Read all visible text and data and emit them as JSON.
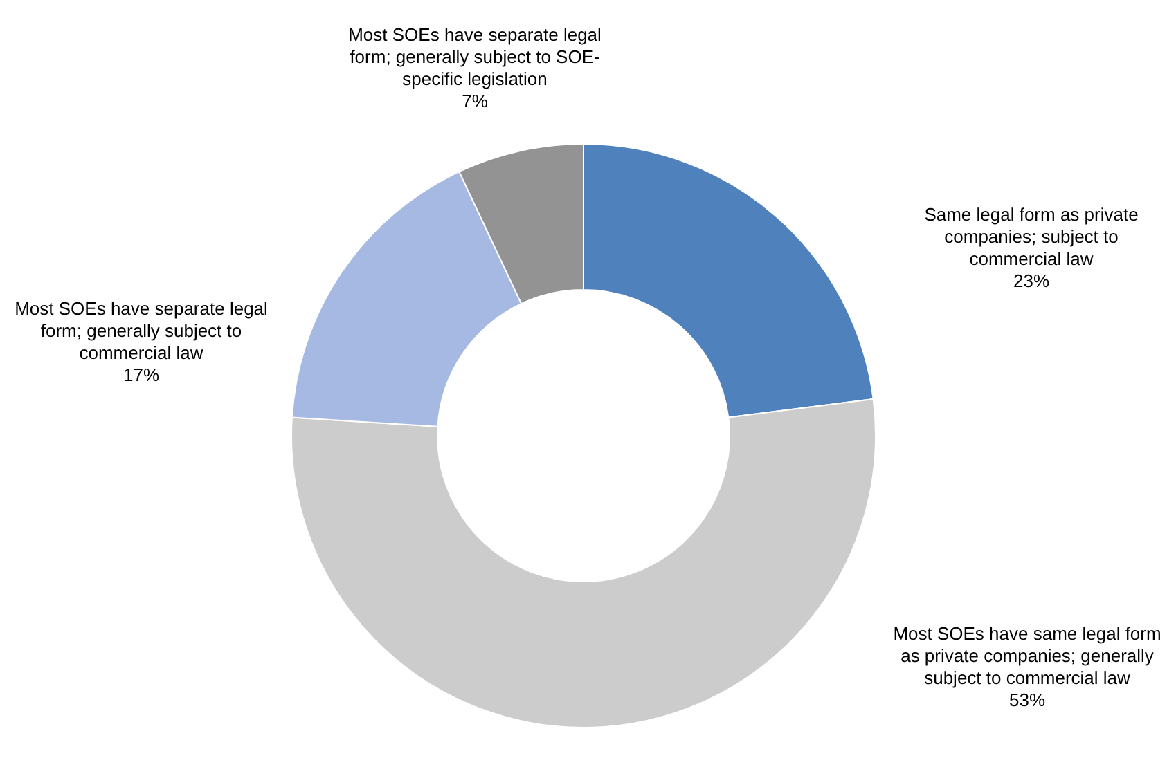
{
  "chart_data": {
    "type": "donut",
    "categories": [
      "Same legal form as private companies; subject to commercial law",
      "Most SOEs have same legal form as private companies; generally subject to commercial law",
      "Most SOEs have separate legal form; generally subject to commercial law",
      "Most SOEs have separate legal form; generally subject to SOE-specific legislation"
    ],
    "values": [
      23,
      53,
      17,
      7
    ],
    "colors": [
      "#4f81bd",
      "#cccccc",
      "#a6b9e3",
      "#939393"
    ],
    "value_labels": [
      "23%",
      "53%",
      "17%",
      "7%"
    ],
    "legend": false
  }
}
